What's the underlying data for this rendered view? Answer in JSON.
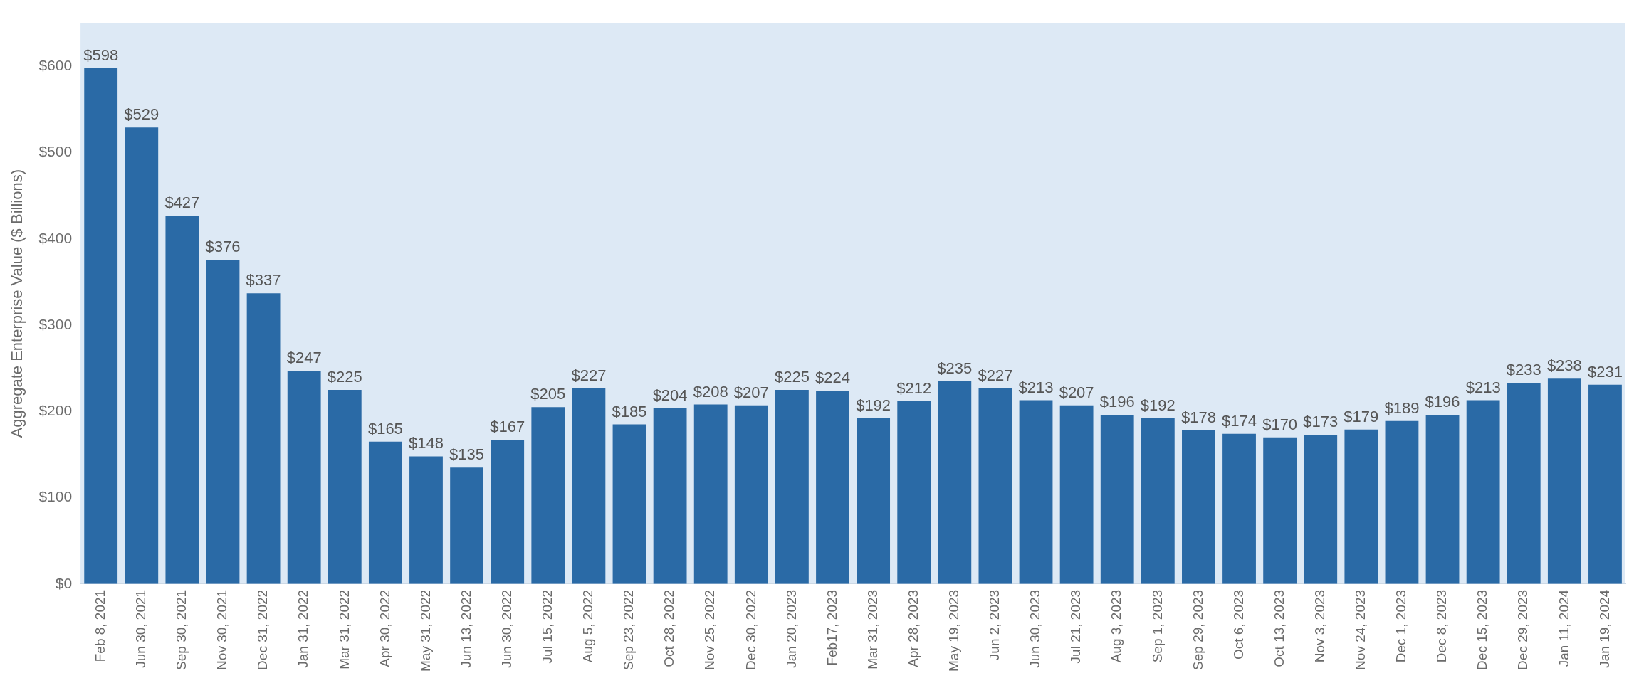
{
  "chart_data": {
    "type": "bar",
    "ylabel": "Aggregate Enterprise Value ($ Billions)",
    "categories": [
      "Feb 8, 2021",
      "Jun 30, 2021",
      "Sep 30, 2021",
      "Nov 30, 2021",
      "Dec 31, 2022",
      "Jan 31, 2022",
      "Mar 31, 2022",
      "Apr 30, 2022",
      "May 31, 2022",
      "Jun 13, 2022",
      "Jun 30, 2022",
      "Jul 15, 2022",
      "Aug 5, 2022",
      "Sep 23, 2022",
      "Oct 28, 2022",
      "Nov 25, 2022",
      "Dec 30, 2022",
      "Jan 20, 2023",
      "Feb17, 2023",
      "Mar 31, 2023",
      "Apr 28, 2023",
      "May 19, 2023",
      "Jun 2, 2023",
      "Jun 30, 2023",
      "Jul 21, 2023",
      "Aug 3, 2023",
      "Sep 1, 2023",
      "Sep 29, 2023",
      "Oct 6, 2023",
      "Oct 13, 2023",
      "Nov 3, 2023",
      "Nov 24, 2023",
      "Dec 1, 2023",
      "Dec 8, 2023",
      "Dec 15, 2023",
      "Dec 29, 2023",
      "Jan 11, 2024",
      "Jan 19, 2024"
    ],
    "values": [
      598,
      529,
      427,
      376,
      337,
      247,
      225,
      165,
      148,
      135,
      167,
      205,
      227,
      185,
      204,
      208,
      207,
      225,
      224,
      192,
      212,
      235,
      227,
      213,
      207,
      196,
      192,
      178,
      174,
      170,
      173,
      179,
      189,
      196,
      213,
      233,
      238,
      231
    ],
    "value_labels": [
      "$598",
      "$529",
      "$427",
      "$376",
      "$337",
      "$247",
      "$225",
      "$165",
      "$148",
      "$135",
      "$167",
      "$205",
      "$227",
      "$185",
      "$204",
      "$208",
      "$207",
      "$225",
      "$224",
      "$192",
      "$212",
      "$235",
      "$227",
      "$213",
      "$207",
      "$196",
      "$192",
      "$178",
      "$174",
      "$170",
      "$173",
      "$179",
      "$189",
      "$196",
      "$213",
      "$233",
      "$238",
      "$231"
    ],
    "color": "#2a6aa6",
    "ylim": [
      0,
      650
    ],
    "yticks": [
      {
        "value": 0,
        "label": "$0"
      },
      {
        "value": 100,
        "label": "$100"
      },
      {
        "value": 200,
        "label": "$200"
      },
      {
        "value": 300,
        "label": "$300"
      },
      {
        "value": 400,
        "label": "$400"
      },
      {
        "value": 500,
        "label": "$500"
      },
      {
        "value": 600,
        "label": "$600"
      }
    ],
    "grid": false,
    "legend": false
  }
}
